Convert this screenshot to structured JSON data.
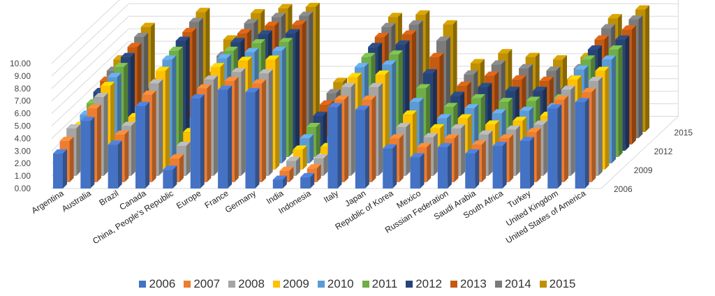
{
  "chart_data": {
    "type": "bar",
    "style": "3d-clustered-depth",
    "title": "",
    "xlabel": "",
    "ylabel": "",
    "ylim": [
      0,
      10
    ],
    "yticks": [
      "0.00",
      "1.00",
      "2.00",
      "3.00",
      "4.00",
      "5.00",
      "6.00",
      "7.00",
      "8.00",
      "9.00",
      "10.00"
    ],
    "depth_tick_labels": [
      "2006",
      "2009",
      "2012",
      "2015"
    ],
    "grid": true,
    "legend_position": "bottom",
    "categories": [
      "Argentina",
      "Australia",
      "Brazil",
      "Canada",
      "China, People's Republic",
      "Europe",
      "France",
      "Germany",
      "India",
      "Indonesia",
      "Italy",
      "Japan",
      "Republic of Korea",
      "Mexico",
      "Russian Federation",
      "Saudi Arabia",
      "South Africa",
      "Turkey",
      "United Kingdom",
      "United States of America"
    ],
    "series": [
      {
        "name": "2006",
        "color": "#4472C4",
        "values": [
          2.8,
          5.4,
          3.5,
          6.6,
          1.5,
          7.2,
          7.9,
          7.7,
          0.7,
          0.9,
          6.5,
          6.3,
          3.2,
          2.5,
          3.3,
          2.8,
          3.4,
          3.8,
          6.4,
          6.9
        ]
      },
      {
        "name": "2007",
        "color": "#ED7D31",
        "values": [
          3.3,
          5.9,
          3.8,
          7.0,
          1.9,
          7.5,
          8.1,
          7.9,
          0.9,
          1.1,
          6.6,
          6.6,
          3.5,
          2.8,
          3.5,
          3.0,
          3.5,
          4.0,
          6.6,
          7.2
        ]
      },
      {
        "name": "2008",
        "color": "#A5A5A5",
        "values": [
          3.8,
          6.3,
          4.0,
          7.4,
          2.4,
          7.7,
          8.3,
          8.2,
          1.2,
          1.4,
          7.1,
          7.1,
          3.9,
          3.1,
          3.8,
          3.3,
          3.7,
          4.1,
          6.9,
          7.6
        ]
      },
      {
        "name": "2009",
        "color": "#FFC000",
        "values": [
          3.5,
          6.7,
          4.2,
          7.9,
          3.0,
          8.2,
          8.7,
          8.8,
          1.6,
          1.8,
          7.4,
          7.6,
          4.4,
          3.3,
          4.1,
          3.6,
          3.9,
          4.3,
          7.2,
          7.9
        ]
      },
      {
        "name": "2010",
        "color": "#5B9BD5",
        "values": [
          3.9,
          6.9,
          4.5,
          8.3,
          3.6,
          8.4,
          8.9,
          9.0,
          2.0,
          2.1,
          7.7,
          7.9,
          4.9,
          3.6,
          4.4,
          4.0,
          4.2,
          4.5,
          7.5,
          8.3
        ]
      },
      {
        "name": "2011",
        "color": "#70AD47",
        "values": [
          4.3,
          7.2,
          4.7,
          8.5,
          4.3,
          8.5,
          9.1,
          9.2,
          2.4,
          2.4,
          8.0,
          8.2,
          5.5,
          4.0,
          4.7,
          4.4,
          4.5,
          4.7,
          7.8,
          8.6
        ]
      },
      {
        "name": "2012",
        "color": "#264478",
        "values": [
          4.7,
          7.5,
          5.0,
          8.8,
          5.1,
          8.7,
          9.3,
          9.4,
          2.8,
          2.7,
          8.3,
          8.5,
          6.2,
          4.4,
          5.1,
          4.8,
          4.8,
          4.9,
          8.1,
          8.9
        ]
      },
      {
        "name": "2013",
        "color": "#C55A11",
        "values": [
          5.1,
          7.8,
          5.3,
          9.0,
          5.8,
          8.9,
          9.5,
          9.6,
          3.2,
          3.0,
          8.6,
          8.8,
          7.0,
          4.7,
          5.5,
          5.2,
          5.1,
          5.2,
          8.4,
          9.2
        ]
      },
      {
        "name": "2014",
        "color": "#7B7B7B",
        "values": [
          5.4,
          8.1,
          5.6,
          9.3,
          6.6,
          9.2,
          9.7,
          9.8,
          3.6,
          3.3,
          8.9,
          9.1,
          7.8,
          5.1,
          5.9,
          5.6,
          5.4,
          5.6,
          8.8,
          9.5
        ]
      },
      {
        "name": "2015",
        "color": "#BF9000",
        "values": [
          5.8,
          8.4,
          5.9,
          9.6,
          7.4,
          9.5,
          9.9,
          10.0,
          4.0,
          3.6,
          9.2,
          9.4,
          8.6,
          5.5,
          6.3,
          6.0,
          5.8,
          6.0,
          9.1,
          9.8
        ]
      }
    ]
  }
}
